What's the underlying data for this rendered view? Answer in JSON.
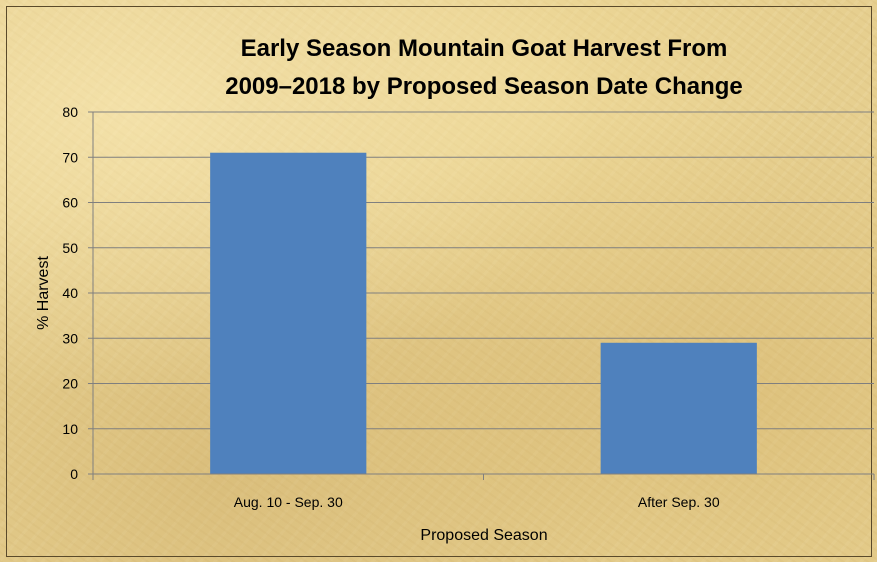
{
  "chart_data": {
    "type": "bar",
    "title_lines": [
      "Early Season Mountain Goat Harvest From",
      "2009–2018 by Proposed Season Date Change"
    ],
    "categories": [
      "Aug. 10 - Sep. 30",
      "After Sep. 30"
    ],
    "values": [
      71,
      29
    ],
    "xlabel": "Proposed Season",
    "ylabel": "% Harvest",
    "ylim": [
      0,
      80
    ],
    "yticks": [
      "0",
      "10",
      "20",
      "30",
      "40",
      "50",
      "60",
      "70",
      "80"
    ],
    "grid": true,
    "legend": "none",
    "bar_color": "#4f81bd",
    "gridline_color": "#7f7f7f",
    "background_color": "#e6cf8f"
  }
}
